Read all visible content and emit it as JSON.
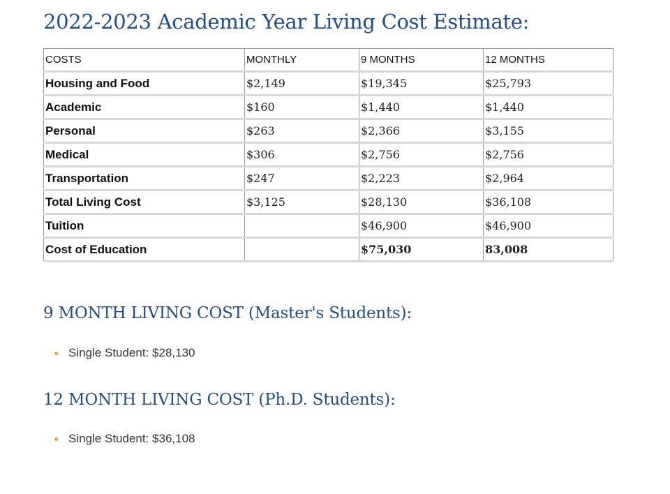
{
  "title": "2022-2023 Academic Year Living Cost Estimate:",
  "table": {
    "headers": [
      "COSTS",
      "MONTHLY",
      "9 MONTHS",
      "12 MONTHS"
    ],
    "rows": [
      {
        "label": "Housing and Food",
        "monthly": "$2,149",
        "nine": "$19,345",
        "twelve": "$25,793"
      },
      {
        "label": "Academic",
        "monthly": "$160",
        "nine": "$1,440",
        "twelve": "$1,440"
      },
      {
        "label": "Personal",
        "monthly": "$263",
        "nine": "$2,366",
        "twelve": "$3,155"
      },
      {
        "label": "Medical",
        "monthly": "$306",
        "nine": "$2,756",
        "twelve": "$2,756"
      },
      {
        "label": "Transportation",
        "monthly": "$247",
        "nine": "$2,223",
        "twelve": "$2,964"
      },
      {
        "label": "Total Living Cost",
        "monthly": "$3,125",
        "nine": "$28,130",
        "twelve": "$36,108"
      },
      {
        "label": "Tuition",
        "monthly": "",
        "nine": "$46,900",
        "twelve": "$46,900"
      },
      {
        "label": "Cost of Education",
        "monthly": "",
        "nine": "$75,030",
        "twelve": "83,008"
      }
    ]
  },
  "sections": [
    {
      "title": "9 MONTH LIVING COST (Master's Students):",
      "items": [
        "Single Student: $28,130"
      ]
    },
    {
      "title": "12 MONTH LIVING COST (Ph.D. Students):",
      "items": [
        "Single Student: $36,108"
      ]
    }
  ],
  "colors": {
    "heading": "#1f4e8c",
    "bullet": "#e8a33d"
  }
}
